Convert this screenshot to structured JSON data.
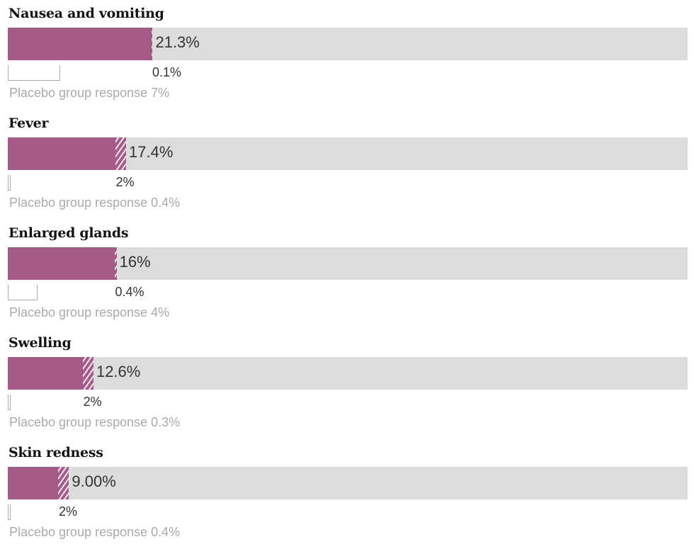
{
  "chart_data": {
    "type": "bar",
    "xlim": [
      0,
      100
    ],
    "colors": {
      "vaccine": "#a65a87",
      "track": "#dcdcdc",
      "placebo": "#aaaaaa"
    },
    "placebo_prefix": "Placebo group response",
    "items": [
      {
        "category": "Nausea and vomiting",
        "value": 21.3,
        "value_label": "21.3%",
        "severe": 0.1,
        "severe_label": "0.1%",
        "placebo": 7,
        "placebo_label": "7%"
      },
      {
        "category": "Fever",
        "value": 17.4,
        "value_label": "17.4%",
        "severe": 2,
        "severe_label": "2%",
        "placebo": 0.4,
        "placebo_label": "0.4%"
      },
      {
        "category": "Enlarged glands",
        "value": 16,
        "value_label": "16%",
        "severe": 0.4,
        "severe_label": "0.4%",
        "placebo": 4,
        "placebo_label": "4%"
      },
      {
        "category": "Swelling",
        "value": 12.6,
        "value_label": "12.6%",
        "severe": 2,
        "severe_label": "2%",
        "placebo": 0.3,
        "placebo_label": "0.3%"
      },
      {
        "category": "Skin redness",
        "value": 9.0,
        "value_label": "9.00%",
        "severe": 2,
        "severe_label": "2%",
        "placebo": 0.4,
        "placebo_label": "0.4%"
      }
    ]
  }
}
